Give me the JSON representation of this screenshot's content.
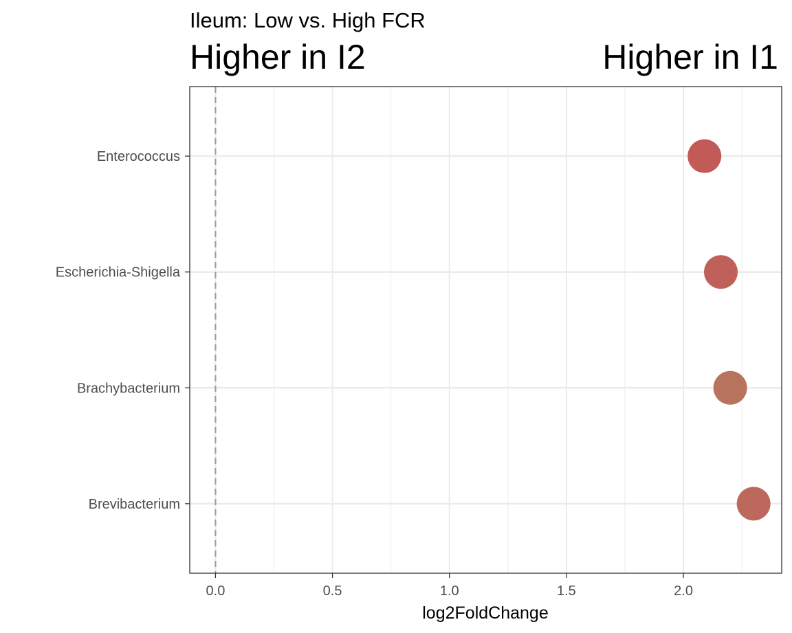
{
  "chart_data": {
    "type": "scatter",
    "title": "Ileum: Low vs. High FCR",
    "annotations": {
      "left": "Higher in I2",
      "right": "Higher in I1"
    },
    "xlabel": "log2FoldChange",
    "ylabel": "",
    "xlim": [
      -0.11,
      2.42
    ],
    "x_ticks": [
      0.0,
      0.5,
      1.0,
      1.5,
      2.0
    ],
    "x_tick_labels": [
      "0.0",
      "0.5",
      "1.0",
      "1.5",
      "2.0"
    ],
    "categories": [
      "Enterococcus",
      "Escherichia-Shigella",
      "Brachybacterium",
      "Brevibacterium"
    ],
    "points": [
      {
        "label": "Enterococcus",
        "x": 2.09,
        "color": "#c25b58"
      },
      {
        "label": "Escherichia-Shigella",
        "x": 2.16,
        "color": "#c0605a"
      },
      {
        "label": "Brachybacterium",
        "x": 2.2,
        "color": "#b8735f"
      },
      {
        "label": "Brevibacterium",
        "x": 2.3,
        "color": "#bc685c"
      }
    ],
    "reference_line": {
      "x": 0,
      "style": "dashed",
      "color": "#9e9e9e"
    },
    "grid": true,
    "legend": "none"
  }
}
